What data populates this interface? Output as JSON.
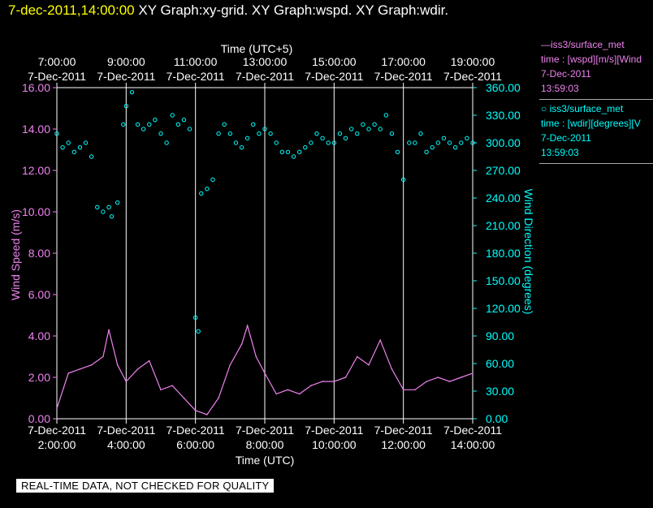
{
  "header": {
    "timestamp": "7-dec-2011,14:00:00",
    "titles": "XY Graph:xy-grid.  XY Graph:wspd.  XY Graph:wdir."
  },
  "legend": [
    {
      "line1": "—iss3/surface_met",
      "line2": "time : [wspd][m/s][Wind",
      "line3": "7-Dec-2011",
      "line4": "13:59:03",
      "color": "#ee82ee"
    },
    {
      "line1": "○ iss3/surface_met",
      "line2": "time : [wdir][degrees][V",
      "line3": "7-Dec-2011",
      "line4": "13:59:03",
      "color": "#00ffff"
    }
  ],
  "quality_banner": "REAL-TIME DATA, NOT CHECKED FOR QUALITY",
  "colors": {
    "wspd": "#ee82ee",
    "wdir": "#00ffff",
    "axis_left": "#ee82ee",
    "axis_right": "#00ffff",
    "grid": "#ffffff"
  },
  "chart_data": {
    "type": "line",
    "title": "",
    "xlabel": "Time (UTC)",
    "x2label": "Time (UTC+5)",
    "ylabel": "Wind Speed (m/s)",
    "y2label": "Wind Direction (degrees)",
    "xlim": [
      "02:00",
      "14:00"
    ],
    "ylim": [
      0,
      16
    ],
    "y2lim": [
      0,
      360
    ],
    "grid": "vertical",
    "x_ticks_bottom": [
      {
        "date": "7-Dec-2011",
        "time": "2:00:00"
      },
      {
        "date": "7-Dec-2011",
        "time": "4:00:00"
      },
      {
        "date": "7-Dec-2011",
        "time": "6:00:00"
      },
      {
        "date": "7-Dec-2011",
        "time": "8:00:00"
      },
      {
        "date": "7-Dec-2011",
        "time": "10:00:00"
      },
      {
        "date": "7-Dec-2011",
        "time": "12:00:00"
      },
      {
        "date": "7-Dec-2011",
        "time": "14:00:00"
      }
    ],
    "x_ticks_top": [
      {
        "time": "7:00:00",
        "date": "7-Dec-2011"
      },
      {
        "time": "9:00:00",
        "date": "7-Dec-2011"
      },
      {
        "time": "11:00:00",
        "date": "7-Dec-2011"
      },
      {
        "time": "13:00:00",
        "date": "7-Dec-2011"
      },
      {
        "time": "15:00:00",
        "date": "7-Dec-2011"
      },
      {
        "time": "17:00:00",
        "date": "7-Dec-2011"
      },
      {
        "time": "19:00:00",
        "date": "7-Dec-2011"
      }
    ],
    "y_ticks": [
      "0.00",
      "2.00",
      "4.00",
      "6.00",
      "8.00",
      "10.00",
      "12.00",
      "14.00",
      "16.00"
    ],
    "y2_ticks": [
      "0.00",
      "30.00",
      "60.00",
      "90.00",
      "120.00",
      "150.00",
      "180.00",
      "210.00",
      "240.00",
      "270.00",
      "300.00",
      "330.00",
      "360.00"
    ],
    "series": [
      {
        "name": "iss3/surface_met time : [wspd][m/s][Wind",
        "style": "line",
        "x": [
          "02:00",
          "02:20",
          "02:40",
          "03:00",
          "03:20",
          "03:30",
          "03:45",
          "04:00",
          "04:20",
          "04:40",
          "05:00",
          "05:20",
          "05:40",
          "06:00",
          "06:20",
          "06:40",
          "07:00",
          "07:20",
          "07:30",
          "07:45",
          "08:00",
          "08:20",
          "08:40",
          "09:00",
          "09:20",
          "09:40",
          "10:00",
          "10:20",
          "10:40",
          "11:00",
          "11:20",
          "11:40",
          "12:00",
          "12:20",
          "12:40",
          "13:00",
          "13:20",
          "13:40",
          "14:00"
        ],
        "y": [
          0.5,
          2.2,
          2.4,
          2.6,
          3.0,
          4.3,
          2.6,
          1.8,
          2.4,
          2.8,
          1.4,
          1.6,
          1.0,
          0.4,
          0.2,
          1.0,
          2.6,
          3.6,
          4.5,
          3.0,
          2.2,
          1.2,
          1.4,
          1.2,
          1.6,
          1.8,
          1.8,
          2.0,
          3.0,
          2.6,
          3.8,
          2.4,
          1.4,
          1.4,
          1.8,
          2.0,
          1.8,
          2.0,
          2.2
        ]
      },
      {
        "name": "iss3/surface_met time : [wdir][degrees][V",
        "style": "scatter",
        "x": [
          "02:00",
          "02:10",
          "02:20",
          "02:30",
          "02:40",
          "02:50",
          "03:00",
          "03:10",
          "03:20",
          "03:30",
          "03:35",
          "03:45",
          "03:55",
          "04:00",
          "04:10",
          "04:20",
          "04:30",
          "04:40",
          "04:50",
          "05:00",
          "05:10",
          "05:20",
          "05:30",
          "05:40",
          "05:50",
          "06:00",
          "06:05",
          "06:10",
          "06:20",
          "06:30",
          "06:40",
          "06:50",
          "07:00",
          "07:10",
          "07:20",
          "07:30",
          "07:40",
          "07:50",
          "08:00",
          "08:10",
          "08:20",
          "08:30",
          "08:40",
          "08:50",
          "09:00",
          "09:10",
          "09:20",
          "09:30",
          "09:40",
          "09:50",
          "10:00",
          "10:10",
          "10:20",
          "10:30",
          "10:40",
          "10:50",
          "11:00",
          "11:10",
          "11:20",
          "11:30",
          "11:40",
          "11:50",
          "12:00",
          "12:10",
          "12:20",
          "12:30",
          "12:40",
          "12:50",
          "13:00",
          "13:10",
          "13:20",
          "13:30",
          "13:40",
          "13:50",
          "14:00"
        ],
        "y": [
          310,
          295,
          300,
          290,
          295,
          300,
          285,
          230,
          225,
          230,
          220,
          235,
          320,
          340,
          355,
          320,
          315,
          320,
          325,
          310,
          300,
          330,
          320,
          325,
          315,
          110,
          95,
          245,
          250,
          260,
          310,
          320,
          310,
          300,
          295,
          305,
          320,
          310,
          315,
          310,
          300,
          290,
          290,
          285,
          290,
          295,
          300,
          310,
          305,
          300,
          300,
          310,
          305,
          315,
          310,
          320,
          315,
          320,
          315,
          330,
          310,
          290,
          260,
          300,
          300,
          310,
          290,
          295,
          300,
          305,
          300,
          295,
          300,
          305,
          300
        ]
      }
    ]
  }
}
